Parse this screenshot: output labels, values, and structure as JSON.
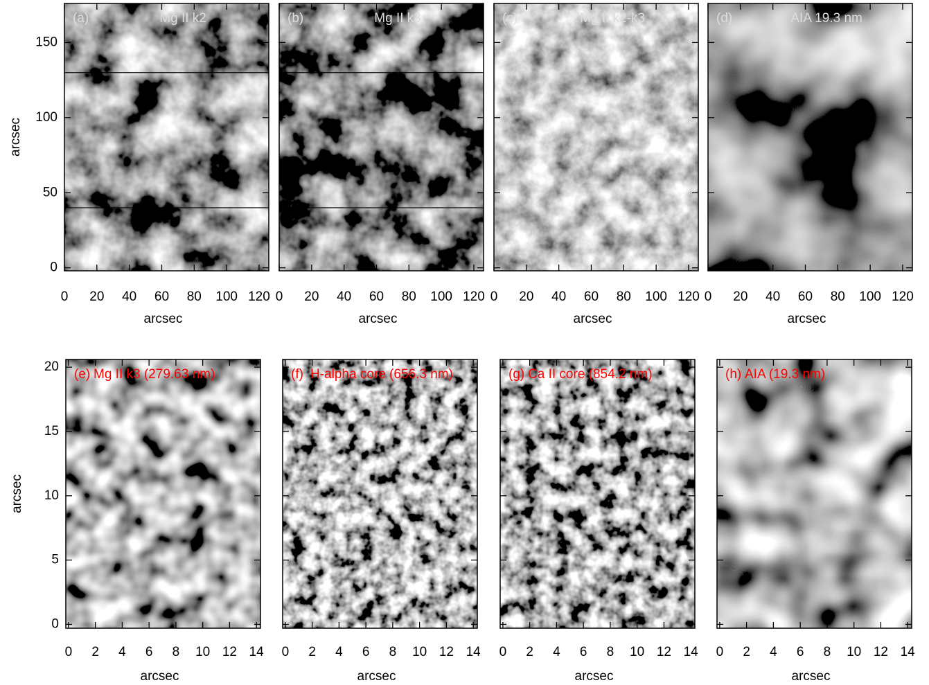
{
  "chart_data": [
    {
      "type": "image",
      "label": "(a)",
      "title": "Mg II k2",
      "title_color": "#dddddd",
      "xlabel": "arcsec",
      "ylabel": "arcsec",
      "xlim": [
        0,
        126
      ],
      "ylim": [
        -2,
        176
      ],
      "xticks": [
        0,
        20,
        40,
        60,
        80,
        100,
        120
      ],
      "yticks": [
        0,
        50,
        100,
        150
      ],
      "ytick_labels": true,
      "hlines": [
        130,
        40
      ]
    },
    {
      "type": "image",
      "label": "(b)",
      "title": "Mg II k3",
      "title_color": "#dddddd",
      "xlabel": "arcsec",
      "xlim": [
        0,
        126
      ],
      "ylim": [
        -2,
        176
      ],
      "xticks": [
        0,
        20,
        40,
        60,
        80,
        100,
        120
      ],
      "yticks": [
        0,
        50,
        100,
        150
      ],
      "ytick_labels": false,
      "hlines": [
        130,
        40
      ]
    },
    {
      "type": "image",
      "label": "(c)",
      "title": "Mg II k2-k3",
      "title_color": "#dddddd",
      "xlabel": "arcsec",
      "xlim": [
        0,
        126
      ],
      "ylim": [
        -2,
        176
      ],
      "xticks": [
        0,
        20,
        40,
        60,
        80,
        100,
        120
      ],
      "yticks": [
        0,
        50,
        100,
        150
      ],
      "ytick_labels": false
    },
    {
      "type": "image",
      "label": "(d)",
      "title": "AIA 19.3 nm",
      "title_color": "#dddddd",
      "xlabel": "arcsec",
      "xlim": [
        0,
        126
      ],
      "ylim": [
        -2,
        176
      ],
      "xticks": [
        0,
        20,
        40,
        60,
        80,
        100,
        120
      ],
      "yticks": [
        0,
        50,
        100,
        150
      ],
      "ytick_labels": false
    },
    {
      "type": "image",
      "label": "(e)",
      "title": "Mg II k3 (279.63 nm)",
      "title_color": "#ff0000",
      "xlabel": "arcsec",
      "ylabel": "arcsec",
      "xlim": [
        -0.2,
        14.3
      ],
      "ylim": [
        -0.3,
        20.6
      ],
      "xticks": [
        0,
        2,
        4,
        6,
        8,
        10,
        12,
        14
      ],
      "yticks": [
        0,
        5,
        10,
        15,
        20
      ],
      "ytick_labels": true
    },
    {
      "type": "image",
      "label": "(f)",
      "title": "H-alpha core (656.3 nm)",
      "title_color": "#ff0000",
      "xlabel": "arcsec",
      "xlim": [
        -0.2,
        14.3
      ],
      "ylim": [
        -0.3,
        20.6
      ],
      "xticks": [
        0,
        2,
        4,
        6,
        8,
        10,
        12,
        14
      ],
      "yticks": [
        0,
        5,
        10,
        15,
        20
      ],
      "ytick_labels": false
    },
    {
      "type": "image",
      "label": "(g)",
      "title": "Ca II core (854.2 nm)",
      "title_color": "#ff0000",
      "xlabel": "arcsec",
      "xlim": [
        -0.2,
        14.3
      ],
      "ylim": [
        -0.3,
        20.6
      ],
      "xticks": [
        0,
        2,
        4,
        6,
        8,
        10,
        12,
        14
      ],
      "yticks": [
        0,
        5,
        10,
        15,
        20
      ],
      "ytick_labels": false
    },
    {
      "type": "image",
      "label": "(h)",
      "title": "AIA (19.3 nm)",
      "title_color": "#ff0000",
      "xlabel": "arcsec",
      "xlim": [
        -0.2,
        14.3
      ],
      "ylim": [
        -0.3,
        20.6
      ],
      "xticks": [
        0,
        2,
        4,
        6,
        8,
        10,
        12,
        14
      ],
      "yticks": [
        0,
        5,
        10,
        15,
        20
      ],
      "ytick_labels": false
    }
  ]
}
